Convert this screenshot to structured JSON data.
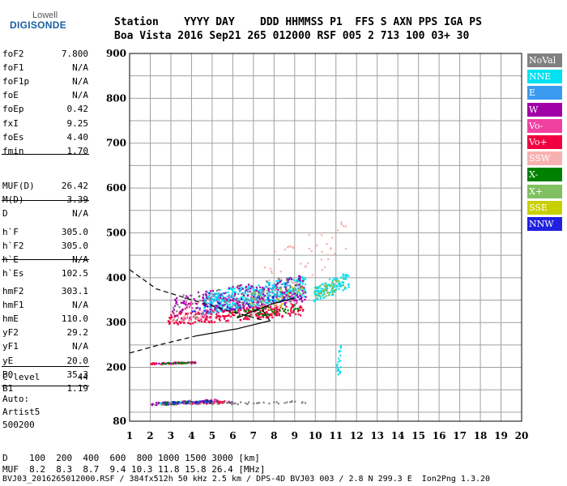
{
  "logo": {
    "line1": "Lowell",
    "line2": "DIGISONDE"
  },
  "header": {
    "line1": "Station    YYYY DAY    DDD HHMMSS P1  FFS S AXN PPS IGA PS",
    "line2": "Boa Vista 2016 Sep21 265 012000 RSF 005 2 713 100 03+ 30"
  },
  "params_a": [
    {
      "name": "foF2",
      "value": "7.800"
    },
    {
      "name": "foF1",
      "value": "N/A"
    },
    {
      "name": "foF1p",
      "value": "N/A"
    },
    {
      "name": "foE",
      "value": "N/A"
    },
    {
      "name": "foEp",
      "value": "0.42"
    },
    {
      "name": "fxI",
      "value": "9.25"
    },
    {
      "name": "foEs",
      "value": "4.40"
    },
    {
      "name": "fmin",
      "value": "1.70"
    }
  ],
  "params_b": [
    {
      "name": "MUF(D)",
      "value": "26.42"
    },
    {
      "name": "M(D)",
      "value": "3.39"
    },
    {
      "name": "D",
      "value": "N/A"
    }
  ],
  "params_c": [
    {
      "name": "h`F",
      "value": "305.0"
    },
    {
      "name": "h`F2",
      "value": "305.0"
    },
    {
      "name": "h`E",
      "value": "N/A"
    },
    {
      "name": "h`Es",
      "value": "102.5"
    }
  ],
  "params_d": [
    {
      "name": "hmF2",
      "value": "303.1"
    },
    {
      "name": "hmF1",
      "value": "N/A"
    },
    {
      "name": "hmE",
      "value": "110.0"
    },
    {
      "name": "yF2",
      "value": "29.2"
    },
    {
      "name": "yF1",
      "value": "N/A"
    },
    {
      "name": "yE",
      "value": "20.0"
    },
    {
      "name": "B0",
      "value": "35.3"
    },
    {
      "name": "B1",
      "value": "1.19"
    }
  ],
  "params_e": [
    {
      "name": "C-level",
      "value": "44"
    }
  ],
  "autoscale": {
    "line1": "Auto:",
    "line2": "Artist5",
    "line3": "500200"
  },
  "footer": {
    "line1": "D    100  200  400  600  800 1000 1500 3000 [km]",
    "line2": "MUF  8.2  8.3  8.7  9.4 10.3 11.8 15.8 26.4 [MHz]",
    "line3": "BVJ03_2016265012000.RSF / 384fx512h 50 kHz 2.5 km / DPS-4D BVJ03 003 / 2.8 N 299.3 E  Ion2Png 1.3.20"
  },
  "legend": [
    {
      "label": "NoVal",
      "color": "#808080"
    },
    {
      "label": "NNE",
      "color": "#00e0f0"
    },
    {
      "label": "E",
      "color": "#3a9af0"
    },
    {
      "label": "W",
      "color": "#a000a8"
    },
    {
      "label": "Vo-",
      "color": "#f040a0"
    },
    {
      "label": "Vo+",
      "color": "#f00040"
    },
    {
      "label": "SSW",
      "color": "#f8b0b0"
    },
    {
      "label": "X-",
      "color": "#008000"
    },
    {
      "label": "X+",
      "color": "#80c060"
    },
    {
      "label": "SSE",
      "color": "#c8d000"
    },
    {
      "label": "NNW",
      "color": "#2020e0"
    }
  ],
  "chart_data": {
    "type": "scatter",
    "title": "",
    "xlabel": "",
    "ylabel": "",
    "xlim": [
      1,
      20
    ],
    "ylim": [
      80,
      900
    ],
    "x_ticks": [
      1,
      2,
      3,
      4,
      5,
      6,
      7,
      8,
      9,
      10,
      11,
      12,
      13,
      14,
      15,
      16,
      17,
      18,
      19,
      20
    ],
    "y_ticks": [
      80,
      200,
      300,
      400,
      500,
      600,
      700,
      800,
      900
    ],
    "grid": true,
    "series": [
      {
        "name": "Vo+",
        "clusters": [
          {
            "x": [
              2.8,
              9.4
            ],
            "y": [
              295,
              340
            ],
            "n": 260
          },
          {
            "x": [
              2.0,
              5.6
            ],
            "y": [
              118,
              126
            ],
            "n": 70
          },
          {
            "x": [
              2.0,
              4.2
            ],
            "y": [
              208,
              214
            ],
            "n": 45
          }
        ]
      },
      {
        "name": "Vo-",
        "clusters": [
          {
            "x": [
              3.5,
              9.4
            ],
            "y": [
              305,
              380
            ],
            "n": 160
          },
          {
            "x": [
              2.2,
              5.2
            ],
            "y": [
              118,
              130
            ],
            "n": 35
          }
        ]
      },
      {
        "name": "NNE",
        "clusters": [
          {
            "x": [
              4.5,
              9.5
            ],
            "y": [
              320,
              400
            ],
            "n": 330
          },
          {
            "x": [
              9.9,
              11.6
            ],
            "y": [
              345,
              410
            ],
            "n": 110
          },
          {
            "x": [
              11.0,
              11.2
            ],
            "y": [
              150,
              250
            ],
            "n": 20
          },
          {
            "x": [
              2.3,
              5.0
            ],
            "y": [
              119,
              127
            ],
            "n": 25
          }
        ]
      },
      {
        "name": "E",
        "clusters": [
          {
            "x": [
              4.5,
              9.3
            ],
            "y": [
              320,
              390
            ],
            "n": 140
          }
        ]
      },
      {
        "name": "W",
        "clusters": [
          {
            "x": [
              3.0,
              9.5
            ],
            "y": [
              300,
              400
            ],
            "n": 200
          },
          {
            "x": [
              2.0,
              6.0
            ],
            "y": [
              117,
              130
            ],
            "n": 40
          },
          {
            "x": [
              2.2,
              4.2
            ],
            "y": [
              209,
              213
            ],
            "n": 20
          }
        ]
      },
      {
        "name": "X-",
        "clusters": [
          {
            "x": [
              5.5,
              9.2
            ],
            "y": [
              310,
              340
            ],
            "n": 50
          },
          {
            "x": [
              2.6,
              5.0
            ],
            "y": [
              118,
              128
            ],
            "n": 30
          },
          {
            "x": [
              2.4,
              4.0
            ],
            "y": [
              209,
              213
            ],
            "n": 15
          }
        ]
      },
      {
        "name": "X+",
        "clusters": [
          {
            "x": [
              6.5,
              9.5
            ],
            "y": [
              330,
              390
            ],
            "n": 40
          },
          {
            "x": [
              9.9,
              11.4
            ],
            "y": [
              350,
              400
            ],
            "n": 40
          }
        ]
      },
      {
        "name": "SSW",
        "clusters": [
          {
            "x": [
              7.5,
              11.6
            ],
            "y": [
              360,
              520
            ],
            "n": 50
          },
          {
            "x": [
              2.8,
              4.5
            ],
            "y": [
              300,
              320
            ],
            "n": 20
          }
        ]
      },
      {
        "name": "SSE",
        "clusters": [
          {
            "x": [
              7.0,
              9.3
            ],
            "y": [
              320,
              380
            ],
            "n": 15
          }
        ]
      },
      {
        "name": "NNW",
        "clusters": [
          {
            "x": [
              4.0,
              8.5
            ],
            "y": [
              320,
              360
            ],
            "n": 30
          },
          {
            "x": [
              2.5,
              5.0
            ],
            "y": [
              118,
              128
            ],
            "n": 30
          }
        ]
      },
      {
        "name": "NoVal",
        "clusters": [
          {
            "x": [
              2.0,
              9.5
            ],
            "y": [
              117,
              126
            ],
            "n": 50
          },
          {
            "x": [
              3.0,
              9.2
            ],
            "y": [
              300,
              400
            ],
            "n": 40
          }
        ]
      }
    ],
    "profile_lines": [
      {
        "style": "dashed",
        "points": [
          [
            1.0,
            418
          ],
          [
            2.3,
            375
          ],
          [
            3.7,
            355
          ],
          [
            5.5,
            330
          ],
          [
            7.5,
            305
          ]
        ]
      },
      {
        "style": "dashed",
        "points": [
          [
            1.0,
            232
          ],
          [
            2.5,
            251
          ],
          [
            3.5,
            262
          ],
          [
            4.2,
            270
          ]
        ]
      },
      {
        "style": "solid",
        "points": [
          [
            4.2,
            270
          ],
          [
            6.2,
            286
          ],
          [
            7.8,
            304
          ],
          [
            7.45,
            327
          ]
        ]
      },
      {
        "style": "solid",
        "points": [
          [
            6.2,
            310
          ],
          [
            7.8,
            340
          ],
          [
            9.0,
            355
          ]
        ]
      }
    ]
  }
}
